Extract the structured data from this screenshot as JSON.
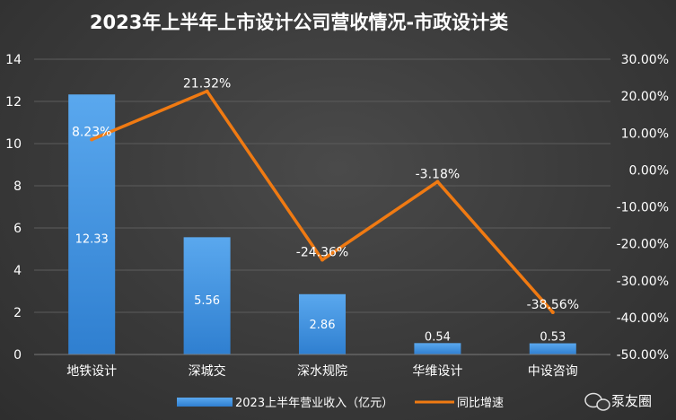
{
  "chart_data": {
    "type": "bar",
    "title": "2023年上半年上市设计公司营收情况-市政设计类",
    "categories": [
      "地铁设计",
      "深城交",
      "深水规院",
      "华维设计",
      "中设咨询"
    ],
    "series": [
      {
        "name": "2023上半年营业收入（亿元）",
        "kind": "bar",
        "axis": "left",
        "values": [
          12.33,
          5.56,
          2.86,
          0.54,
          0.53
        ],
        "labels": [
          "12.33",
          "5.56",
          "2.86",
          "0.54",
          "0.53"
        ]
      },
      {
        "name": "同比增速",
        "kind": "line",
        "axis": "right",
        "values": [
          8.23,
          21.32,
          -24.36,
          -3.18,
          -38.56
        ],
        "labels": [
          "8.23%",
          "21.32%",
          "-24.36%",
          "-3.18%",
          "-38.56%"
        ]
      }
    ],
    "y_left": {
      "min": 0,
      "max": 14,
      "ticks": [
        "0",
        "2",
        "4",
        "6",
        "8",
        "10",
        "12",
        "14"
      ]
    },
    "y_right": {
      "min": -50,
      "max": 30,
      "ticks": [
        "-50.00%",
        "-40.00%",
        "-30.00%",
        "-20.00%",
        "-10.00%",
        "0.00%",
        "10.00%",
        "20.00%",
        "30.00%"
      ]
    },
    "grid": true,
    "legend_position": "bottom",
    "colors": {
      "bar": "#4a9ae6",
      "line": "#f07a12"
    }
  },
  "watermark": {
    "text": "泵友圈",
    "icon": "wechat-icon"
  }
}
